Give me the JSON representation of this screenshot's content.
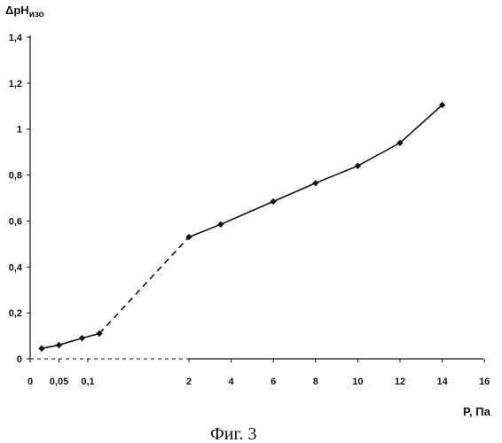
{
  "chart_data": {
    "type": "line",
    "ylabel_main": "ΔpH",
    "ylabel_sub": "изо",
    "xlabel": "P, Па",
    "caption": "Фиг. 3",
    "ylim": [
      0,
      1.4
    ],
    "y_ticks": [
      "0",
      "0,2",
      "0,4",
      "0,6",
      "0,8",
      "1",
      "1,2",
      "1,4"
    ],
    "x_ticks": [
      "0",
      "0,05",
      "0,1",
      "2",
      "4",
      "6",
      "8",
      "10",
      "12",
      "14",
      "16"
    ],
    "grid": false,
    "legend": "none",
    "x_scale_note": "axis broken between 0,1 and 2",
    "series": [
      {
        "style": "solid",
        "x": [
          0.02,
          0.05,
          0.09,
          0.12
        ],
        "y": [
          0.045,
          0.06,
          0.09,
          0.11
        ]
      },
      {
        "style": "dashed",
        "x": [
          0.12,
          2
        ],
        "y": [
          0.11,
          0.53
        ]
      },
      {
        "style": "solid",
        "x": [
          2,
          3.5,
          6,
          8,
          10,
          12,
          14
        ],
        "y": [
          0.53,
          0.585,
          0.685,
          0.765,
          0.84,
          0.94,
          1.105
        ]
      }
    ]
  }
}
